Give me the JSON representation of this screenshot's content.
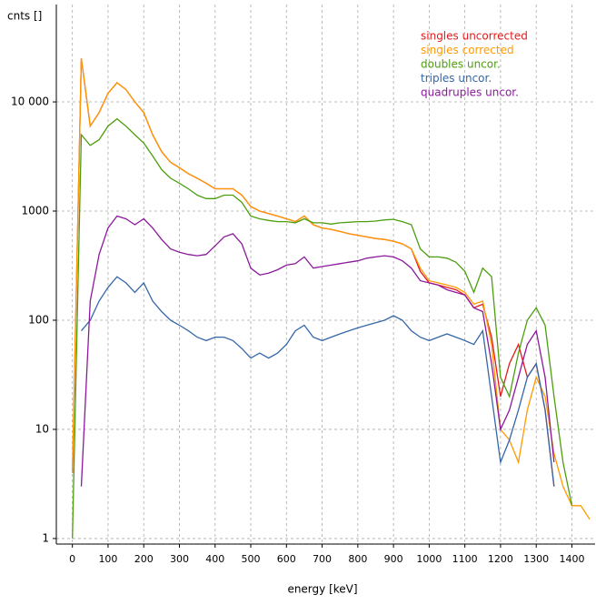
{
  "chart_data": {
    "type": "line",
    "xlabel": "energy [keV]",
    "ylabel": "cnts []",
    "x": [
      0,
      25,
      50,
      75,
      100,
      125,
      150,
      175,
      200,
      225,
      250,
      275,
      300,
      325,
      350,
      375,
      400,
      425,
      450,
      475,
      500,
      525,
      550,
      575,
      600,
      625,
      650,
      675,
      700,
      725,
      750,
      775,
      800,
      825,
      850,
      875,
      900,
      925,
      950,
      975,
      1000,
      1025,
      1050,
      1075,
      1100,
      1125,
      1150,
      1175,
      1200,
      1225,
      1250,
      1275,
      1300,
      1325,
      1350,
      1375,
      1400,
      1425,
      1450
    ],
    "series": [
      {
        "name": "singles uncorrected",
        "color": "#e41a1c",
        "values": [
          4,
          25000,
          6000,
          8000,
          12000,
          15000,
          13000,
          10000,
          8000,
          5000,
          3500,
          2800,
          2500,
          2200,
          2000,
          1800,
          1600,
          1600,
          1600,
          1400,
          1100,
          1000,
          950,
          900,
          850,
          800,
          900,
          750,
          700,
          680,
          650,
          620,
          600,
          580,
          560,
          550,
          530,
          500,
          450,
          280,
          220,
          210,
          200,
          190,
          170,
          130,
          140,
          70,
          20,
          40,
          60,
          30,
          40,
          15,
          3,
          null,
          null,
          null,
          null
        ]
      },
      {
        "name": "singles corrected",
        "color": "#ff9900",
        "values": [
          4,
          25000,
          6000,
          8000,
          12000,
          15000,
          13000,
          10000,
          8000,
          5000,
          3500,
          2800,
          2500,
          2200,
          2000,
          1800,
          1600,
          1600,
          1600,
          1400,
          1100,
          1000,
          950,
          900,
          850,
          800,
          900,
          750,
          700,
          680,
          650,
          620,
          600,
          580,
          560,
          550,
          530,
          500,
          450,
          300,
          230,
          220,
          210,
          200,
          180,
          140,
          150,
          60,
          10,
          8,
          5,
          15,
          30,
          20,
          6,
          3,
          2,
          2,
          1.5
        ]
      },
      {
        "name": "doubles uncor.",
        "color": "#4d9e0f",
        "values": [
          1,
          5000,
          4000,
          4500,
          6000,
          7000,
          6000,
          5000,
          4200,
          3200,
          2400,
          2000,
          1800,
          1600,
          1400,
          1300,
          1300,
          1400,
          1400,
          1200,
          900,
          850,
          820,
          800,
          800,
          780,
          850,
          780,
          780,
          760,
          780,
          790,
          800,
          800,
          810,
          830,
          840,
          800,
          750,
          450,
          380,
          380,
          370,
          340,
          280,
          180,
          300,
          250,
          30,
          20,
          50,
          100,
          130,
          90,
          20,
          5,
          2,
          null,
          null
        ]
      },
      {
        "name": "triples uncor.",
        "color": "#3567a8",
        "values": [
          null,
          80,
          100,
          150,
          200,
          250,
          220,
          180,
          220,
          150,
          120,
          100,
          90,
          80,
          70,
          65,
          70,
          70,
          65,
          55,
          45,
          50,
          45,
          50,
          60,
          80,
          90,
          70,
          65,
          70,
          75,
          80,
          85,
          90,
          95,
          100,
          110,
          100,
          80,
          70,
          65,
          70,
          75,
          70,
          65,
          60,
          80,
          20,
          5,
          8,
          15,
          30,
          40,
          15,
          3,
          null,
          null,
          null,
          null
        ]
      },
      {
        "name": "quadruples uncor.",
        "color": "#8b1a9b",
        "values": [
          null,
          3,
          150,
          400,
          700,
          900,
          850,
          750,
          850,
          700,
          550,
          450,
          420,
          400,
          390,
          400,
          480,
          580,
          620,
          500,
          300,
          260,
          270,
          290,
          320,
          330,
          380,
          300,
          310,
          320,
          330,
          340,
          350,
          370,
          380,
          390,
          380,
          350,
          300,
          230,
          220,
          210,
          190,
          180,
          170,
          130,
          120,
          40,
          10,
          15,
          30,
          60,
          80,
          30,
          5,
          null,
          null,
          null,
          null
        ]
      }
    ],
    "xlim": [
      -45,
      1465
    ],
    "xticks": [
      0,
      100,
      200,
      300,
      400,
      500,
      600,
      700,
      800,
      900,
      1000,
      1100,
      1200,
      1300,
      1400
    ],
    "ylim": [
      0.89,
      78000
    ],
    "yscale": "log",
    "yticks": [
      1,
      10,
      100,
      1000,
      {
        "value": 10000,
        "label": "10 000"
      }
    ],
    "grid": true,
    "legend": "upper right"
  }
}
